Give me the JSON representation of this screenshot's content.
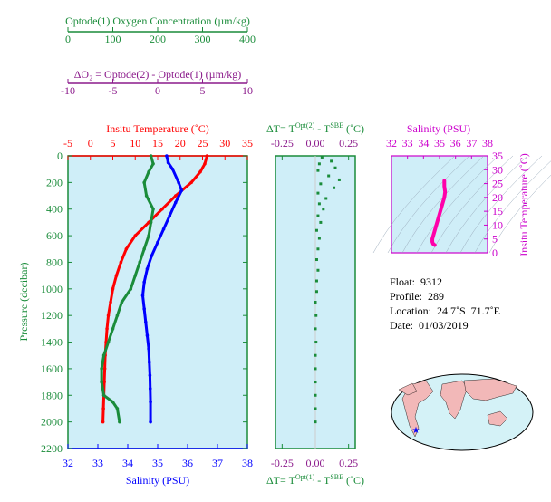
{
  "colors": {
    "green": "#1a8c3a",
    "purple": "#8b1a8b",
    "red": "#ff0000",
    "blue": "#0000ff",
    "magenta": "#ff00aa",
    "panel_bg": "#cfeef8",
    "land": "#f2b8b8",
    "ocean": "#d4f2f7"
  },
  "oxygen_axis": {
    "label": "Optode(1) Oxygen Concentration (µm/kg)",
    "ticks": [
      "0",
      "100",
      "200",
      "300",
      "400"
    ]
  },
  "delta_o2_axis": {
    "label": "ΔO₂ = Optode(2) - Optode(1)   (µm/kg)",
    "ticks": [
      "-10",
      "-5",
      "0",
      "5",
      "10"
    ]
  },
  "info": {
    "float": "Float:  9312",
    "profile": "Profile:  289",
    "location": "Location:  24.7˚S  71.7˚E",
    "date": "Date:  01/03/2019"
  },
  "chart_data": [
    {
      "type": "line",
      "panel": "main-profile",
      "ylabel": "Pressure (decibar)",
      "ylim": [
        2200,
        0
      ],
      "yticks": [
        "0",
        "200",
        "400",
        "600",
        "800",
        "1000",
        "1200",
        "1400",
        "1600",
        "1800",
        "2000",
        "2200"
      ],
      "temp_axis": {
        "label": "Insitu Temperature (˚C)",
        "range": [
          -5,
          35
        ],
        "ticks": [
          "-5",
          "0",
          "5",
          "10",
          "15",
          "20",
          "25",
          "30",
          "35"
        ]
      },
      "sal_axis": {
        "label": "Salinity (PSU)",
        "range": [
          32,
          38
        ],
        "ticks": [
          "32",
          "33",
          "34",
          "35",
          "36",
          "37",
          "38"
        ]
      },
      "oxy_axis_range": [
        0,
        400
      ],
      "series": [
        {
          "name": "temperature",
          "color": "red",
          "axis": "temp",
          "points": [
            [
              26,
              0
            ],
            [
              25.5,
              60
            ],
            [
              24.5,
              120
            ],
            [
              22.5,
              200
            ],
            [
              19,
              300
            ],
            [
              16,
              400
            ],
            [
              13,
              500
            ],
            [
              10,
              600
            ],
            [
              8,
              700
            ],
            [
              6.8,
              800
            ],
            [
              5.8,
              900
            ],
            [
              5,
              1000
            ],
            [
              4.5,
              1100
            ],
            [
              4,
              1200
            ],
            [
              3.7,
              1300
            ],
            [
              3.5,
              1400
            ],
            [
              3.3,
              1500
            ],
            [
              3.2,
              1600
            ],
            [
              3.1,
              1700
            ],
            [
              3,
              1800
            ],
            [
              2.9,
              1900
            ],
            [
              2.8,
              2000
            ]
          ]
        },
        {
          "name": "salinity",
          "color": "blue",
          "axis": "sal",
          "points": [
            [
              35.3,
              0
            ],
            [
              35.35,
              50
            ],
            [
              35.5,
              100
            ],
            [
              35.7,
              200
            ],
            [
              35.8,
              260
            ],
            [
              35.6,
              350
            ],
            [
              35.4,
              450
            ],
            [
              35.2,
              550
            ],
            [
              35,
              650
            ],
            [
              34.8,
              750
            ],
            [
              34.65,
              850
            ],
            [
              34.55,
              950
            ],
            [
              34.5,
              1050
            ],
            [
              34.55,
              1150
            ],
            [
              34.6,
              1250
            ],
            [
              34.65,
              1350
            ],
            [
              34.7,
              1450
            ],
            [
              34.72,
              1550
            ],
            [
              34.74,
              1650
            ],
            [
              34.75,
              1750
            ],
            [
              34.76,
              1850
            ],
            [
              34.76,
              2000
            ]
          ]
        },
        {
          "name": "oxygen",
          "color": "green",
          "axis": "oxy",
          "points": [
            [
              185,
              0
            ],
            [
              190,
              60
            ],
            [
              180,
              120
            ],
            [
              170,
              200
            ],
            [
              175,
              300
            ],
            [
              190,
              400
            ],
            [
              185,
              500
            ],
            [
              180,
              600
            ],
            [
              170,
              700
            ],
            [
              160,
              800
            ],
            [
              150,
              900
            ],
            [
              140,
              1000
            ],
            [
              120,
              1100
            ],
            [
              110,
              1200
            ],
            [
              100,
              1300
            ],
            [
              90,
              1400
            ],
            [
              80,
              1500
            ],
            [
              75,
              1600
            ],
            [
              75,
              1700
            ],
            [
              80,
              1800
            ],
            [
              100,
              1850
            ],
            [
              110,
              1900
            ],
            [
              115,
              2000
            ]
          ]
        }
      ]
    },
    {
      "type": "scatter",
      "panel": "delta-t",
      "top_axis": {
        "label": "ΔT= T^Opt(2) - T^SBE (˚C)",
        "ticks": [
          "-0.25",
          "0.00",
          "0.25"
        ]
      },
      "bottom_axis": {
        "label": "ΔT= T^Opt(1) - T^SBE (˚C)",
        "ticks": [
          "-0.25",
          "0.00",
          "0.25"
        ]
      },
      "xlim": [
        -0.3,
        0.3
      ],
      "ylim": [
        2200,
        0
      ],
      "series": [
        {
          "name": "delta_t",
          "color": "green",
          "points": [
            [
              0.05,
              10
            ],
            [
              0.12,
              40
            ],
            [
              0.03,
              60
            ],
            [
              0.15,
              90
            ],
            [
              0.02,
              110
            ],
            [
              0.1,
              150
            ],
            [
              0.18,
              180
            ],
            [
              0.04,
              210
            ],
            [
              0.14,
              240
            ],
            [
              0.02,
              280
            ],
            [
              0.08,
              320
            ],
            [
              0.03,
              360
            ],
            [
              0.06,
              400
            ],
            [
              0.02,
              450
            ],
            [
              0.04,
              500
            ],
            [
              0.01,
              560
            ],
            [
              0.03,
              620
            ],
            [
              0.02,
              700
            ],
            [
              0.01,
              780
            ],
            [
              0.02,
              860
            ],
            [
              0.01,
              940
            ],
            [
              0.01,
              1020
            ],
            [
              0.0,
              1100
            ],
            [
              0.005,
              1200
            ],
            [
              0.0,
              1300
            ],
            [
              0.005,
              1400
            ],
            [
              0.0,
              1500
            ],
            [
              0.0,
              1600
            ],
            [
              0.0,
              1700
            ],
            [
              0.0,
              1800
            ],
            [
              0.0,
              1900
            ],
            [
              0.0,
              2000
            ]
          ]
        }
      ]
    },
    {
      "type": "line",
      "panel": "ts-diagram",
      "x_axis": {
        "label": "Salinity (PSU)",
        "range": [
          32,
          38
        ],
        "ticks": [
          "32",
          "33",
          "34",
          "35",
          "36",
          "37",
          "38"
        ]
      },
      "y_axis": {
        "label": "Insitu Temperature (˚C)",
        "range": [
          0,
          35
        ],
        "ticks": [
          "0",
          "5",
          "10",
          "15",
          "20",
          "25",
          "30",
          "35"
        ]
      },
      "series": [
        {
          "name": "ts_curve",
          "color": "magenta",
          "points": [
            [
              35.3,
              26
            ],
            [
              35.3,
              24
            ],
            [
              35.35,
              22
            ],
            [
              35.3,
              20
            ],
            [
              35.2,
              18
            ],
            [
              35.1,
              16
            ],
            [
              35,
              14
            ],
            [
              34.9,
              12
            ],
            [
              34.8,
              10
            ],
            [
              34.7,
              8
            ],
            [
              34.6,
              6
            ],
            [
              34.55,
              5
            ],
            [
              34.55,
              4
            ],
            [
              34.6,
              3.2
            ],
            [
              34.7,
              2.8
            ]
          ]
        }
      ]
    }
  ]
}
